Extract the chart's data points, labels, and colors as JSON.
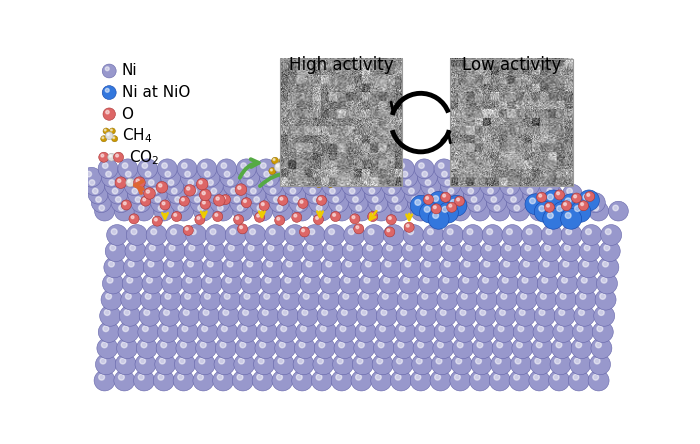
{
  "bg_color": "#ffffff",
  "high_activity_label": "High activity",
  "low_activity_label": "Low activity",
  "ni_color": "#9898cc",
  "ni_edge_color": "#6666aa",
  "ni_nio_color": "#3377dd",
  "ni_nio_edge": "#1144aa",
  "o_color": "#dd6666",
  "o_edge_color": "#aa3333",
  "ch4_c_color": "#dddddd",
  "ch4_s_color": "#cc9900",
  "co2_c_color": "#dddddd",
  "co2_o_color": "#dd6666",
  "orange_arrow": "#dd6633",
  "green_arrow": "#55aa44",
  "yellow_arrow": "#eecc00",
  "blue_beam": "#88ccff",
  "legend_items": [
    {
      "label": "Ni",
      "type": "ni"
    },
    {
      "label": "Ni at NiO",
      "type": "nio"
    },
    {
      "label": "O",
      "type": "o"
    },
    {
      "label": "CH4",
      "type": "ch4"
    },
    {
      "label": "CO2",
      "type": "co2"
    }
  ]
}
